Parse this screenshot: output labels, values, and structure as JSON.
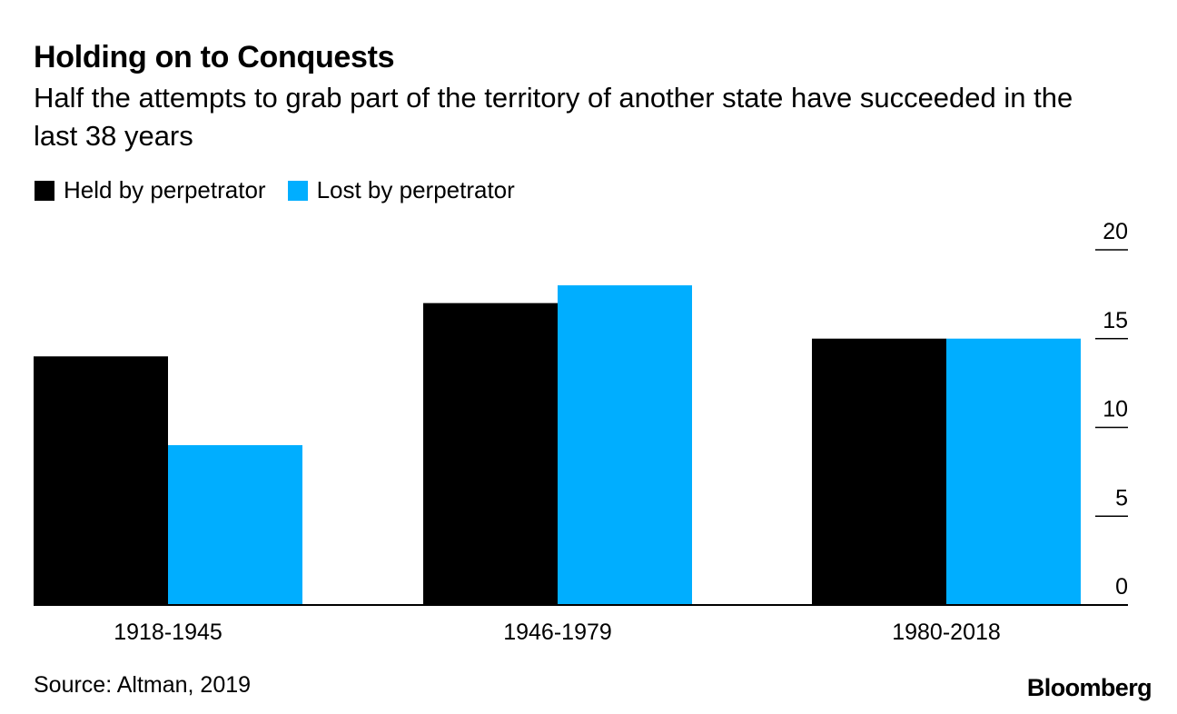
{
  "chart_data": {
    "type": "bar",
    "title": "Holding on to Conquests",
    "subtitle": "Half the attempts to grab part of the territory of another state have succeeded in the last 38 years",
    "categories": [
      "1918-1945",
      "1946-1979",
      "1980-2018"
    ],
    "series": [
      {
        "name": "Held by perpetrator",
        "color": "#000000",
        "values": [
          14,
          17,
          15
        ]
      },
      {
        "name": "Lost by perpetrator",
        "color": "#00aeff",
        "values": [
          9,
          18,
          15
        ]
      }
    ],
    "ylim": [
      0,
      20
    ],
    "yticks": [
      0,
      5,
      10,
      15,
      20
    ],
    "yaxis_position": "right",
    "legend_position": "top-left",
    "xlabel": "",
    "ylabel": ""
  },
  "footer": {
    "source": "Source: Altman, 2019",
    "brand": "Bloomberg"
  }
}
